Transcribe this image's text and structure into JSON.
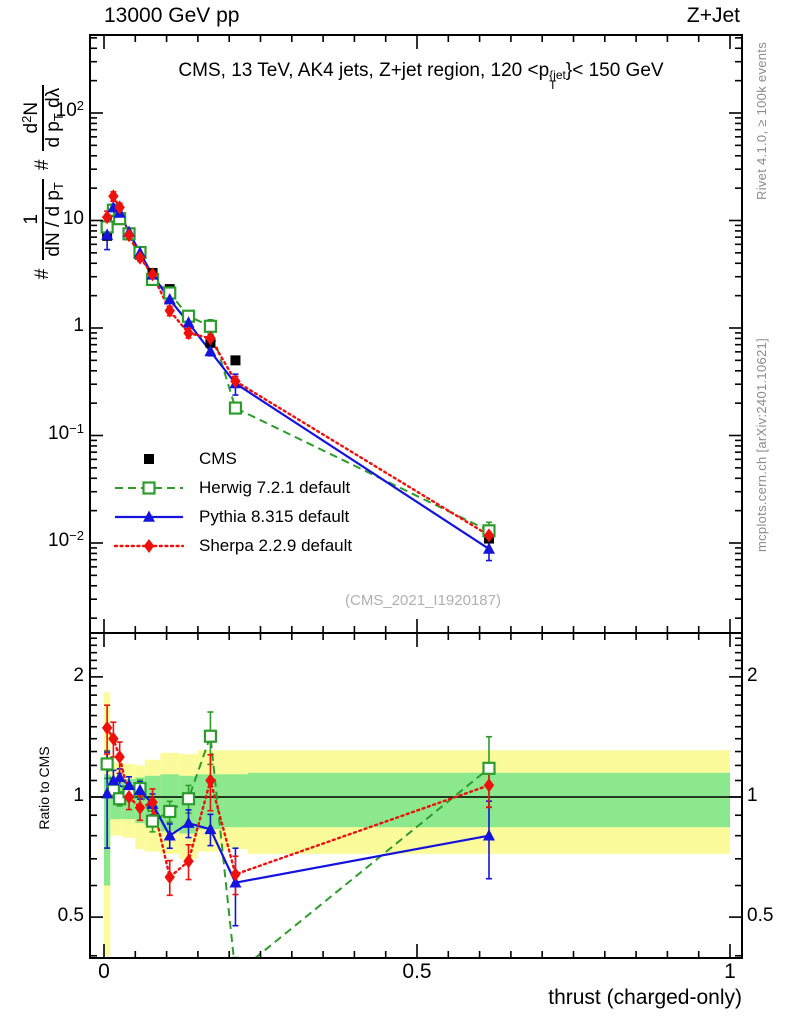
{
  "header": {
    "left": "13000 GeV pp",
    "right": "Z+Jet"
  },
  "panel_title": {
    "pre": "CMS, 13 TeV, AK4 jets, Z+jet region, 120 <p",
    "sup": "{jet",
    "sub": "T",
    "post": "}< 150 GeV"
  },
  "ylabel": {
    "h1": "#",
    "f1n": "1",
    "f1d": "dN / d p",
    "f1d_sub": "T",
    "h2": "#",
    "f2n_pre": "d",
    "f2n_sup": "2",
    "f2n_post": "N",
    "f2d_pre": "d p",
    "f2d_sub": "T",
    "f2d_post": " dλ"
  },
  "ratio_ylabel": "Ratio to CMS",
  "xlabel": "thrust (charged-only)",
  "watermark": "(CMS_2021_I1920187)",
  "notes": {
    "rivet": "Rivet 4.1.0, ≥ 100k events",
    "mcplots": "mcplots.cern.ch [arXiv:2401.10621]"
  },
  "legend": {
    "items": [
      {
        "label": "CMS",
        "style": "cms"
      },
      {
        "label": "Herwig 7.2.1 default",
        "style": "herwig"
      },
      {
        "label": "Pythia 8.315 default",
        "style": "pythia"
      },
      {
        "label": "Sherpa 2.2.9 default",
        "style": "sherpa"
      }
    ]
  },
  "colors": {
    "cms": "#000000",
    "herwig": "#2e9b2e",
    "pythia": "#1414dd",
    "sherpa": "#ee100c",
    "band_yellow": "#fbfb9b",
    "band_green": "#8ce88c",
    "note_gray": "#8c8c8c",
    "watermark_gray": "#b0b0b0"
  },
  "chart_data": {
    "type": "scatter-line",
    "title": "CMS, 13 TeV, AK4 jets, Z+jet region, 120 < pT{jet} < 150 GeV",
    "xlabel": "thrust (charged-only)",
    "ylabel_main": "# 1/(dN/dpT) # d2N/(dpT dlambda)",
    "ylabel_ratio": "Ratio to CMS",
    "x_axis": {
      "min": -0.022,
      "max": 1.019,
      "major_ticks": [
        0,
        0.5,
        1
      ],
      "labels": [
        "0",
        "0.5",
        "1"
      ],
      "minor_step": 0.05
    },
    "main_y_axis": {
      "scale": "log",
      "min": 0.00145,
      "max": 532,
      "decade_labels": [
        {
          "base": "10",
          "exp": "2",
          "value": 100
        },
        {
          "base": "10",
          "exp": "",
          "value": 10
        },
        {
          "base": "1",
          "exp": "",
          "value": 1
        },
        {
          "base": "10",
          "exp": "−1",
          "value": 0.1
        },
        {
          "base": "10",
          "exp": "−2",
          "value": 0.01
        }
      ]
    },
    "ratio_y_axis": {
      "scale": "log",
      "min": 0.395,
      "max": 2.58,
      "major_ticks": [
        {
          "label": "2",
          "value": 2
        },
        {
          "label": "1",
          "value": 1
        },
        {
          "label": "0.5",
          "value": 0.5
        }
      ],
      "minor_ticks": [
        0.4,
        0.6,
        0.7,
        0.8,
        0.9,
        1.1,
        1.2,
        1.3,
        1.4,
        1.5,
        1.6,
        1.7,
        1.8,
        1.9,
        2.1,
        2.2,
        2.3,
        2.4,
        2.5
      ]
    },
    "bin_edges": [
      0,
      0.01,
      0.02,
      0.03,
      0.05,
      0.065,
      0.09,
      0.12,
      0.15,
      0.19,
      0.23,
      1.0
    ],
    "bin_centers": [
      0.005,
      0.015,
      0.025,
      0.04,
      0.0575,
      0.0775,
      0.105,
      0.135,
      0.17,
      0.21,
      0.615
    ],
    "cms": {
      "name": "CMS",
      "values": [
        7.2,
        12.0,
        10.5,
        7.3,
        4.8,
        3.25,
        2.3,
        1.3,
        0.73,
        0.5,
        0.011
      ]
    },
    "series": [
      {
        "name": "Herwig 7.2.1 default",
        "style": "herwig",
        "ratio": [
          1.21,
          1.04,
          0.99,
          1.03,
          1.05,
          0.87,
          0.92,
          0.99,
          1.42,
          0.36,
          1.18
        ],
        "err_frac": [
          0.08,
          0.04,
          0.04,
          0.04,
          0.05,
          0.06,
          0.06,
          0.08,
          0.15,
          0.1,
          0.2
        ]
      },
      {
        "name": "Pythia 8.315 default",
        "style": "pythia",
        "ratio": [
          1.02,
          1.1,
          1.12,
          1.07,
          1.04,
          0.96,
          0.8,
          0.86,
          0.83,
          0.61,
          0.8
        ],
        "err_frac": [
          0.27,
          0.06,
          0.05,
          0.05,
          0.05,
          0.06,
          0.07,
          0.08,
          0.09,
          0.22,
          0.22
        ]
      },
      {
        "name": "Sherpa 2.2.9 default",
        "style": "sherpa",
        "ratio": [
          1.49,
          1.4,
          1.26,
          1.0,
          0.94,
          0.97,
          0.63,
          0.69,
          1.1,
          0.64,
          1.07
        ],
        "err_frac": [
          0.14,
          0.1,
          0.09,
          0.07,
          0.07,
          0.08,
          0.1,
          0.1,
          0.16,
          0.11,
          0.12
        ]
      }
    ],
    "bands": {
      "yellow": [
        [
          0.4,
          1.83
        ],
        [
          0.8,
          1.22
        ],
        [
          0.8,
          1.22
        ],
        [
          0.79,
          1.21
        ],
        [
          0.74,
          1.2
        ],
        [
          0.73,
          1.24
        ],
        [
          0.72,
          1.29
        ],
        [
          0.7,
          1.28
        ],
        [
          0.73,
          1.31
        ],
        [
          0.74,
          1.31
        ],
        [
          0.72,
          1.31
        ]
      ],
      "green": [
        [
          0.6,
          1.14
        ],
        [
          0.88,
          1.1
        ],
        [
          0.88,
          1.1
        ],
        [
          0.88,
          1.11
        ],
        [
          0.86,
          1.12
        ],
        [
          0.85,
          1.13
        ],
        [
          0.82,
          1.14
        ],
        [
          0.81,
          1.13
        ],
        [
          0.83,
          1.14
        ],
        [
          0.84,
          1.14
        ],
        [
          0.84,
          1.15
        ]
      ]
    },
    "legend_position": "middle-left of main panel",
    "grid": false
  }
}
